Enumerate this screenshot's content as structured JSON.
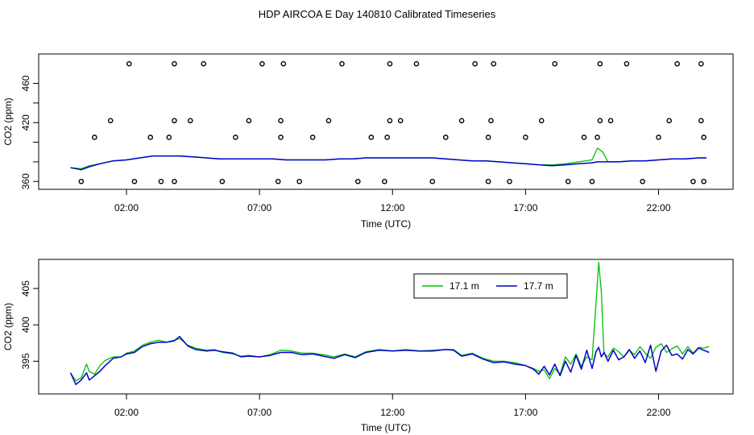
{
  "title": "HDP AIRCOA E  Day 140810  Calibrated Timeseries",
  "colors": {
    "green": "#00c000",
    "blue": "#0000cc"
  },
  "chart_data": [
    {
      "type": "line",
      "xlabel": "Time (UTC)",
      "ylabel": "CO2 (ppm)",
      "xticks": [
        "02:00",
        "07:00",
        "12:00",
        "17:00",
        "22:00"
      ],
      "xtick_hours": [
        2,
        7,
        12,
        17,
        22
      ],
      "yticks": [
        360,
        420,
        460
      ],
      "yticks_unlabeled": [
        380,
        400,
        440
      ],
      "xlim": [
        -1.3,
        24.8
      ],
      "ylim": [
        352,
        490
      ],
      "series": [
        {
          "color": "green",
          "x": [
            -0.1,
            0.3,
            0.6,
            1.0,
            1.5,
            2.0,
            2.5,
            3.0,
            3.5,
            4.0,
            4.5,
            5.0,
            5.5,
            6.0,
            6.5,
            7.0,
            7.5,
            8.0,
            8.5,
            9.0,
            9.5,
            10.0,
            10.5,
            11.0,
            11.5,
            12.0,
            12.5,
            13.0,
            13.5,
            14.0,
            14.5,
            15.0,
            15.5,
            16.0,
            16.5,
            17.0,
            17.5,
            18.0,
            18.5,
            19.0,
            19.5,
            19.7,
            19.9,
            20.1,
            20.5,
            21.0,
            21.5,
            22.0,
            22.5,
            23.0,
            23.5,
            23.8
          ],
          "y": [
            374,
            373,
            376,
            378,
            381,
            382,
            384,
            386,
            386,
            386,
            385,
            384,
            383,
            383,
            383,
            383,
            383,
            382,
            382,
            382,
            382,
            383,
            383,
            384,
            384,
            384,
            384,
            384,
            384,
            383,
            382,
            381,
            381,
            380,
            379,
            378,
            377,
            377,
            378,
            380,
            382,
            394,
            390,
            380,
            380,
            381,
            381,
            382,
            383,
            383,
            384,
            384
          ]
        },
        {
          "color": "blue",
          "x": [
            -0.1,
            0.3,
            0.6,
            1.0,
            1.5,
            2.0,
            2.5,
            3.0,
            3.5,
            4.0,
            4.5,
            5.0,
            5.5,
            6.0,
            6.5,
            7.0,
            7.5,
            8.0,
            8.5,
            9.0,
            9.5,
            10.0,
            10.5,
            11.0,
            11.5,
            12.0,
            12.5,
            13.0,
            13.5,
            14.0,
            14.5,
            15.0,
            15.5,
            16.0,
            16.5,
            17.0,
            17.5,
            18.0,
            18.5,
            19.0,
            19.5,
            19.7,
            19.9,
            20.1,
            20.5,
            21.0,
            21.5,
            22.0,
            22.5,
            23.0,
            23.5,
            23.8
          ],
          "y": [
            374,
            372,
            375,
            378,
            381,
            382,
            384,
            386,
            386,
            386,
            385,
            384,
            383,
            383,
            383,
            383,
            383,
            382,
            382,
            382,
            382,
            383,
            383,
            384,
            384,
            384,
            384,
            384,
            384,
            383,
            382,
            381,
            381,
            380,
            379,
            378,
            377,
            376,
            377,
            378,
            379,
            380,
            380,
            380,
            380,
            381,
            381,
            382,
            383,
            383,
            384,
            384
          ]
        }
      ],
      "scatter": {
        "x": [
          0.3,
          0.8,
          1.4,
          2.1,
          2.3,
          2.9,
          3.3,
          3.6,
          3.8,
          3.8,
          3.8,
          4.4,
          4.9,
          5.6,
          6.1,
          6.6,
          7.1,
          7.7,
          7.8,
          7.8,
          7.9,
          8.5,
          9.0,
          9.6,
          10.1,
          10.7,
          11.2,
          11.7,
          11.8,
          11.9,
          11.9,
          12.3,
          12.9,
          13.5,
          14.0,
          14.6,
          15.1,
          15.6,
          15.6,
          15.7,
          15.8,
          16.4,
          17.0,
          17.6,
          18.1,
          18.6,
          19.2,
          19.5,
          19.7,
          19.8,
          19.8,
          20.2,
          20.8,
          21.4,
          22.0,
          22.4,
          22.7,
          23.3,
          23.6,
          23.6,
          23.7,
          23.7
        ],
        "y": [
          360,
          405,
          422,
          480,
          360,
          405,
          360,
          405,
          422,
          480,
          360,
          422,
          480,
          360,
          405,
          422,
          480,
          360,
          405,
          422,
          480,
          360,
          405,
          422,
          480,
          360,
          405,
          360,
          405,
          422,
          480,
          422,
          480,
          360,
          405,
          422,
          480,
          360,
          405,
          422,
          480,
          360,
          405,
          422,
          480,
          360,
          405,
          360,
          405,
          422,
          480,
          422,
          480,
          360,
          405,
          422,
          480,
          360,
          422,
          480,
          405,
          360
        ]
      }
    },
    {
      "type": "line",
      "xlabel": "Time (UTC)",
      "ylabel": "CO2 (ppm)",
      "xticks": [
        "02:00",
        "07:00",
        "12:00",
        "17:00",
        "22:00"
      ],
      "xtick_hours": [
        2,
        7,
        12,
        17,
        22
      ],
      "yticks": [
        395,
        400,
        405
      ],
      "xlim": [
        -1.3,
        24.8
      ],
      "ylim": [
        390.5,
        409
      ],
      "legend": {
        "placement": "top-right",
        "entries": [
          "17.1 m",
          "17.7 m"
        ]
      },
      "series": [
        {
          "name": "17.1 m",
          "color": "green",
          "x": [
            -0.1,
            0.1,
            0.3,
            0.5,
            0.6,
            0.8,
            1.0,
            1.2,
            1.5,
            1.8,
            2.0,
            2.3,
            2.6,
            2.9,
            3.2,
            3.5,
            3.8,
            4.0,
            4.3,
            4.6,
            5.0,
            5.3,
            5.6,
            6.0,
            6.3,
            6.6,
            7.0,
            7.4,
            7.8,
            8.2,
            8.6,
            9.0,
            9.4,
            9.8,
            10.2,
            10.6,
            11.0,
            11.5,
            12.0,
            12.5,
            13.0,
            13.5,
            14.0,
            14.3,
            14.6,
            15.0,
            15.4,
            15.8,
            16.2,
            16.6,
            17.0,
            17.3,
            17.5,
            17.7,
            17.9,
            18.1,
            18.3,
            18.5,
            18.7,
            18.9,
            19.1,
            19.3,
            19.5,
            19.65,
            19.75,
            19.85,
            19.95,
            20.1,
            20.3,
            20.5,
            20.7,
            20.9,
            21.1,
            21.3,
            21.5,
            21.7,
            21.9,
            22.1,
            22.3,
            22.5,
            22.7,
            22.9,
            23.1,
            23.3,
            23.5,
            23.7,
            23.9
          ],
          "y": [
            393.4,
            392.3,
            392.7,
            394.6,
            393.6,
            393.2,
            394.4,
            395.1,
            395.6,
            395.6,
            396.1,
            396.4,
            397.2,
            397.6,
            397.9,
            397.6,
            397.9,
            398.1,
            397.2,
            396.8,
            396.5,
            396.6,
            396.2,
            396.0,
            395.7,
            395.8,
            395.6,
            395.9,
            396.5,
            396.4,
            396.1,
            396.1,
            395.9,
            395.6,
            396.0,
            395.6,
            396.3,
            396.6,
            396.4,
            396.6,
            396.4,
            396.5,
            396.6,
            396.6,
            395.8,
            396.1,
            395.4,
            395.0,
            395.0,
            394.8,
            394.4,
            394.0,
            393.6,
            393.8,
            392.6,
            394.0,
            393.2,
            395.6,
            394.6,
            396.0,
            394.3,
            395.6,
            395.2,
            403.0,
            408.6,
            404.5,
            396.0,
            395.6,
            396.8,
            396.3,
            395.6,
            396.5,
            395.9,
            397.0,
            396.1,
            395.4,
            396.9,
            397.4,
            396.2,
            396.7,
            397.1,
            396.0,
            397.0,
            396.1,
            396.9,
            396.8,
            397.0
          ]
        },
        {
          "name": "17.7 m",
          "color": "blue",
          "x": [
            -0.1,
            0.1,
            0.3,
            0.5,
            0.6,
            0.8,
            1.0,
            1.2,
            1.5,
            1.8,
            2.0,
            2.3,
            2.6,
            2.9,
            3.2,
            3.5,
            3.8,
            4.0,
            4.3,
            4.6,
            5.0,
            5.3,
            5.6,
            6.0,
            6.3,
            6.6,
            7.0,
            7.4,
            7.8,
            8.2,
            8.6,
            9.0,
            9.4,
            9.8,
            10.2,
            10.6,
            11.0,
            11.5,
            12.0,
            12.5,
            13.0,
            13.5,
            14.0,
            14.3,
            14.6,
            15.0,
            15.4,
            15.8,
            16.2,
            16.6,
            17.0,
            17.3,
            17.5,
            17.7,
            17.9,
            18.1,
            18.3,
            18.5,
            18.7,
            18.9,
            19.1,
            19.3,
            19.5,
            19.65,
            19.75,
            19.85,
            19.95,
            20.1,
            20.3,
            20.5,
            20.7,
            20.9,
            21.1,
            21.3,
            21.5,
            21.7,
            21.9,
            22.1,
            22.3,
            22.5,
            22.7,
            22.9,
            23.1,
            23.3,
            23.5,
            23.7,
            23.9
          ],
          "y": [
            393.4,
            391.8,
            392.4,
            393.4,
            392.4,
            393.0,
            393.6,
            394.4,
            395.4,
            395.6,
            396.0,
            396.2,
            397.0,
            397.4,
            397.6,
            397.6,
            397.8,
            398.4,
            397.1,
            396.6,
            396.4,
            396.5,
            396.3,
            396.1,
            395.6,
            395.7,
            395.6,
            395.8,
            396.2,
            396.2,
            395.9,
            396.0,
            395.7,
            395.4,
            395.9,
            395.5,
            396.2,
            396.5,
            396.4,
            396.5,
            396.4,
            396.4,
            396.6,
            396.5,
            395.7,
            396.0,
            395.3,
            394.8,
            394.9,
            394.6,
            394.4,
            393.9,
            393.2,
            394.3,
            393.1,
            394.6,
            393.0,
            395.0,
            393.5,
            395.8,
            393.9,
            396.5,
            394.0,
            396.3,
            396.9,
            395.6,
            396.2,
            395.0,
            396.5,
            395.2,
            395.6,
            396.6,
            395.4,
            396.4,
            394.8,
            397.2,
            393.6,
            396.4,
            397.2,
            395.8,
            396.0,
            395.3,
            396.6,
            396.0,
            396.8,
            396.5,
            396.2
          ]
        }
      ]
    }
  ]
}
